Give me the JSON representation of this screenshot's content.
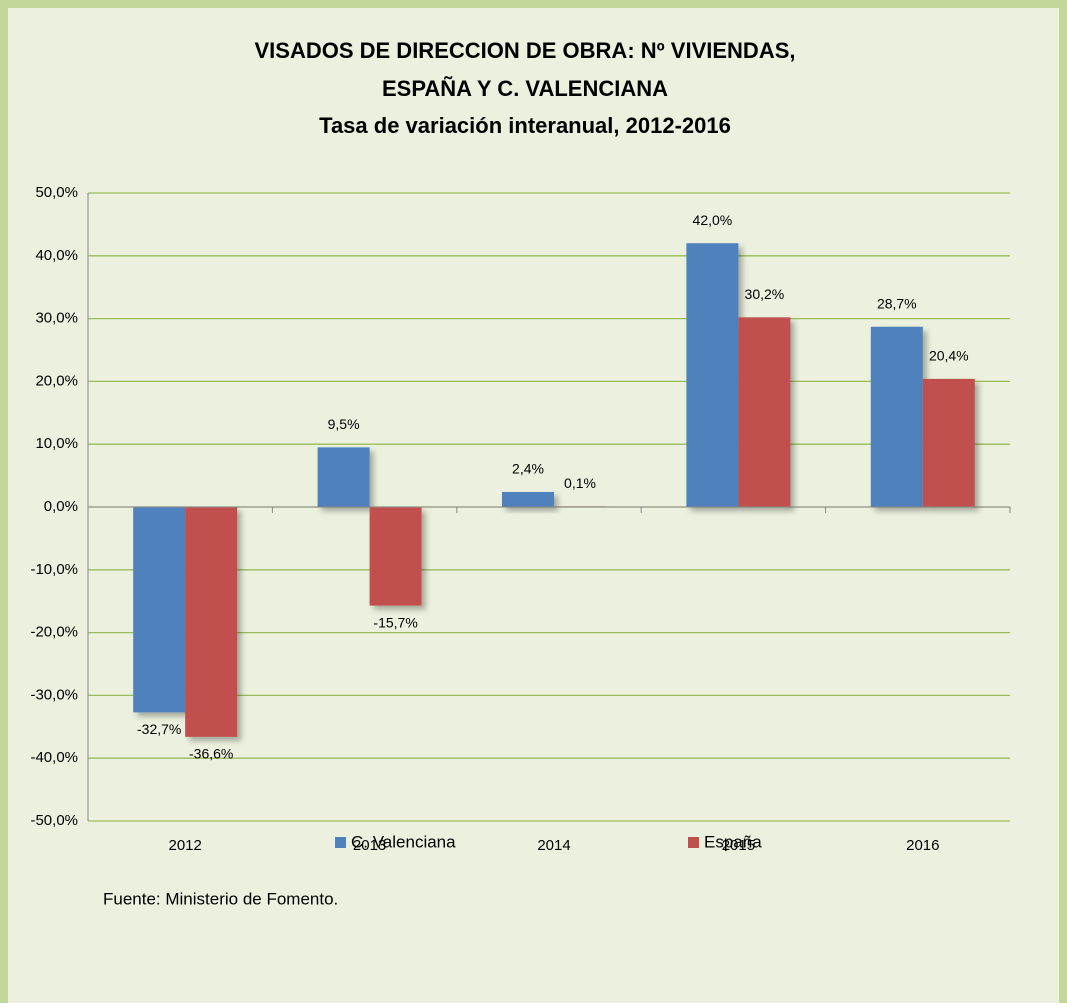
{
  "chart_data": {
    "type": "bar",
    "title": [
      "VISADOS DE DIRECCION DE OBRA: Nº VIVIENDAS,",
      "ESPAÑA Y C. VALENCIANA"
    ],
    "subtitle": "Tasa de variación interanual, 2012-2016",
    "categories": [
      "2012",
      "2013",
      "2014",
      "2015",
      "2016"
    ],
    "series": [
      {
        "name": "C. Valenciana",
        "color": "#4f81bd",
        "values": [
          -32.7,
          9.5,
          2.4,
          42.0,
          28.7
        ],
        "value_labels": [
          "-32,7%",
          "9,5%",
          "2,4%",
          "42,0%",
          "28,7%"
        ]
      },
      {
        "name": "España",
        "color": "#c0504d",
        "values": [
          -36.6,
          -15.7,
          0.1,
          30.2,
          20.4
        ],
        "value_labels": [
          "-36,6%",
          "-15,7%",
          "0,1%",
          "30,2%",
          "20,4%"
        ]
      }
    ],
    "ylim": [
      -50,
      50
    ],
    "yticks": [
      {
        "value": -50,
        "label": "-50,0%"
      },
      {
        "value": -40,
        "label": "-40,0%"
      },
      {
        "value": -30,
        "label": "-30,0%"
      },
      {
        "value": -20,
        "label": "-20,0%"
      },
      {
        "value": -10,
        "label": "-10,0%"
      },
      {
        "value": 0,
        "label": "0,0%"
      },
      {
        "value": 10,
        "label": "10,0%"
      },
      {
        "value": 20,
        "label": "20,0%"
      },
      {
        "value": 30,
        "label": "30,0%"
      },
      {
        "value": 40,
        "label": "40,0%"
      },
      {
        "value": 50,
        "label": "50,0%"
      }
    ],
    "grid": true,
    "grid_color": "#9bbb59",
    "legend": "bottom",
    "source": "Fuente: Ministerio de Fomento."
  }
}
